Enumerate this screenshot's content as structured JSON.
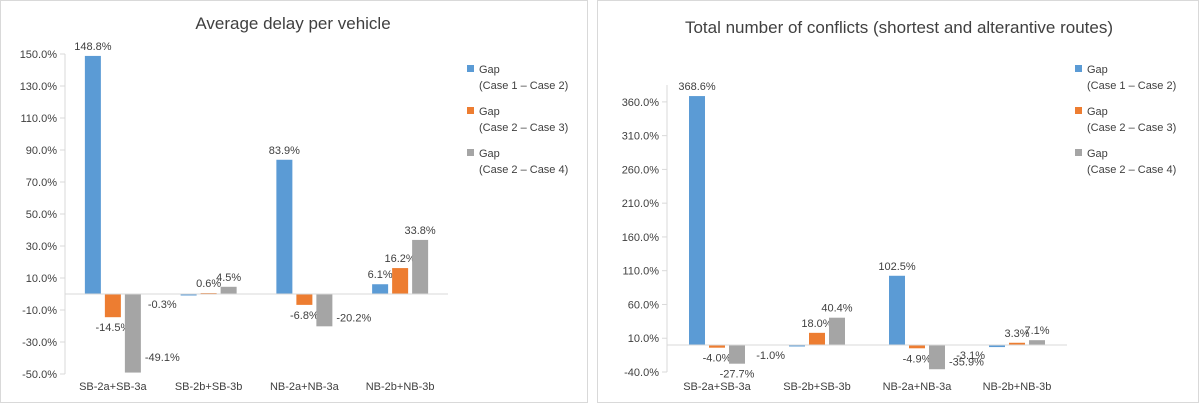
{
  "chart_data": [
    {
      "type": "bar",
      "title": "Average delay per vehicle",
      "xlabel": "",
      "ylabel": "",
      "categories": [
        "SB-2a+SB-3a",
        "SB-2b+SB-3b",
        "NB-2a+NB-3a",
        "NB-2b+NB-3b"
      ],
      "ylim": [
        -50,
        150
      ],
      "yticks": [
        -50,
        -30,
        -10,
        10,
        30,
        50,
        70,
        90,
        110,
        130,
        150
      ],
      "ytick_labels": [
        "-50.0%",
        "-30.0%",
        "-10.0%",
        "10.0%",
        "30.0%",
        "50.0%",
        "70.0%",
        "90.0%",
        "110.0%",
        "130.0%",
        "150.0%"
      ],
      "baseline": 0,
      "grid": false,
      "legend_position": "right",
      "series": [
        {
          "name": "Gap",
          "name2": "(Case 1 – Case 2)",
          "color": "#5b9bd5",
          "values": [
            148.8,
            -0.3,
            83.9,
            6.1
          ],
          "labels": [
            "148.8%",
            "-0.3%",
            "83.9%",
            "6.1%"
          ]
        },
        {
          "name": "Gap",
          "name2": "(Case 2 – Case 3)",
          "color": "#ed7d31",
          "values": [
            -14.5,
            0.6,
            -6.8,
            16.2
          ],
          "labels": [
            "-14.5%",
            "0.6%",
            "-6.8%",
            "16.2%"
          ]
        },
        {
          "name": "Gap",
          "name2": "(Case 2 – Case 4)",
          "color": "#a5a5a5",
          "values": [
            -49.1,
            4.5,
            -20.2,
            33.8
          ],
          "labels": [
            "-49.1%",
            "4.5%",
            "-20.2%",
            "33.8%"
          ]
        }
      ]
    },
    {
      "type": "bar",
      "title": "Total number of conflicts (shortest and alterantive routes)",
      "xlabel": "",
      "ylabel": "",
      "categories": [
        "SB-2a+SB-3a",
        "SB-2b+SB-3b",
        "NB-2a+NB-3a",
        "NB-2b+NB-3b"
      ],
      "ylim": [
        -40,
        385
      ],
      "yticks": [
        -40,
        10,
        60,
        110,
        160,
        210,
        260,
        310,
        360
      ],
      "ytick_labels": [
        "-40.0%",
        "10.0%",
        "60.0%",
        "110.0%",
        "160.0%",
        "210.0%",
        "260.0%",
        "310.0%",
        "360.0%"
      ],
      "baseline": 0,
      "grid": false,
      "legend_position": "right",
      "series": [
        {
          "name": "Gap",
          "name2": "(Case 1 – Case 2)",
          "color": "#5b9bd5",
          "values": [
            368.6,
            -1.0,
            102.5,
            -3.1
          ],
          "labels": [
            "368.6%",
            "-1.0%",
            "102.5%",
            "-3.1%"
          ]
        },
        {
          "name": "Gap",
          "name2": "(Case 2 – Case 3)",
          "color": "#ed7d31",
          "values": [
            -4.0,
            18.0,
            -4.9,
            3.3
          ],
          "labels": [
            "-4.0%",
            "18.0%",
            "-4.9%",
            "3.3%"
          ]
        },
        {
          "name": "Gap",
          "name2": "(Case 2 – Case 4)",
          "color": "#a5a5a5",
          "values": [
            -27.7,
            40.4,
            -35.9,
            7.1
          ],
          "labels": [
            "-27.7%",
            "40.4%",
            "-35.9%",
            "7.1%"
          ]
        }
      ]
    }
  ]
}
